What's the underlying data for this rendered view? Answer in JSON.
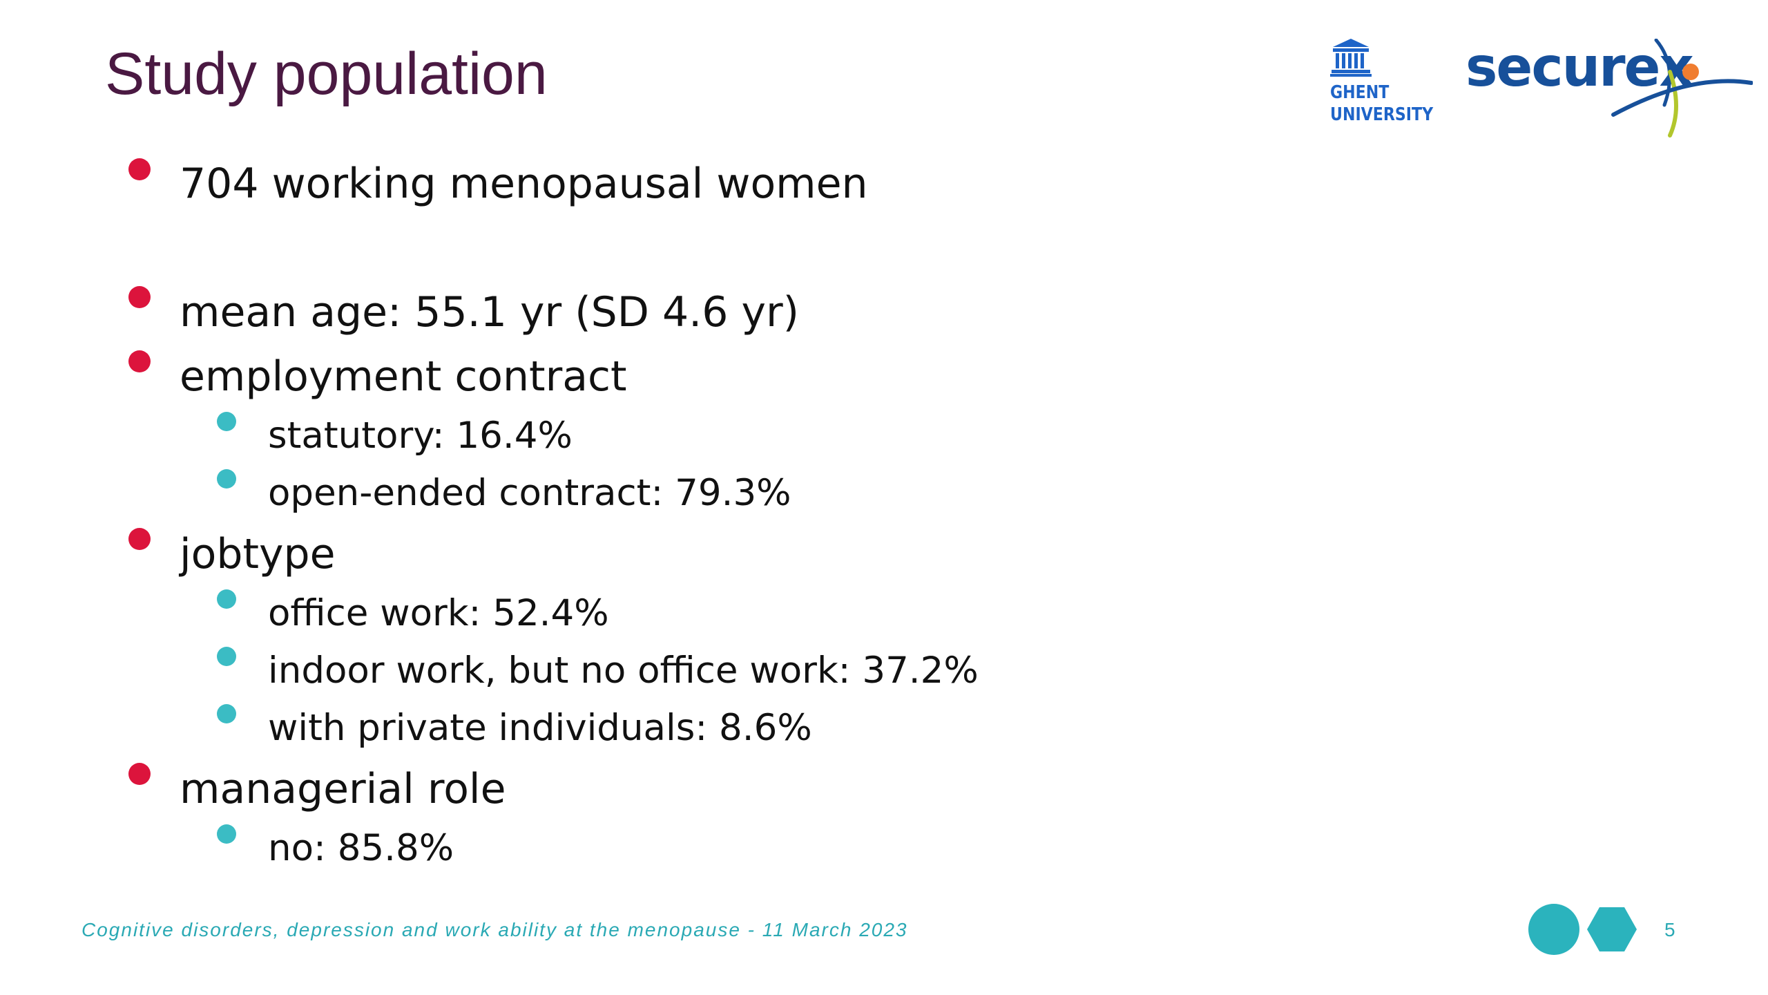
{
  "slide": {
    "title": "Study population",
    "logos": {
      "ugent_line1": "GHENT",
      "ugent_line2": "UNIVERSITY",
      "securex": "securex"
    },
    "bullets": {
      "b1": "704 working menopausal women",
      "b2": "mean age: 55.1 yr (SD 4.6 yr)",
      "b3": "employment contract",
      "b3_1": "statutory: 16.4%",
      "b3_2": "open-ended contract: 79.3%",
      "b4": "jobtype",
      "b4_1": "office work: 52.4%",
      "b4_2": "indoor work, but no office work: 37.2%",
      "b4_3": "with private individuals: 8.6%",
      "b5": "managerial role",
      "b5_1": "no: 85.8%"
    },
    "footer": "Cognitive disorders, depression and work ability at the menopause  - 11 March 2023",
    "page_number": "5"
  },
  "colors": {
    "title": "#4a1942",
    "bullet_level1": "#dc143c",
    "bullet_level2": "#3bbcc4",
    "footer": "#2aa9b4",
    "ugent_blue": "#1e64c8",
    "securex_blue": "#17509a",
    "securex_orange": "#f07d30",
    "securex_green": "#b2c62d"
  },
  "icons": {
    "ugent": "ghent-university-logo",
    "securex": "securex-logo",
    "footer_deco": "circle-hexagon-decoration"
  }
}
